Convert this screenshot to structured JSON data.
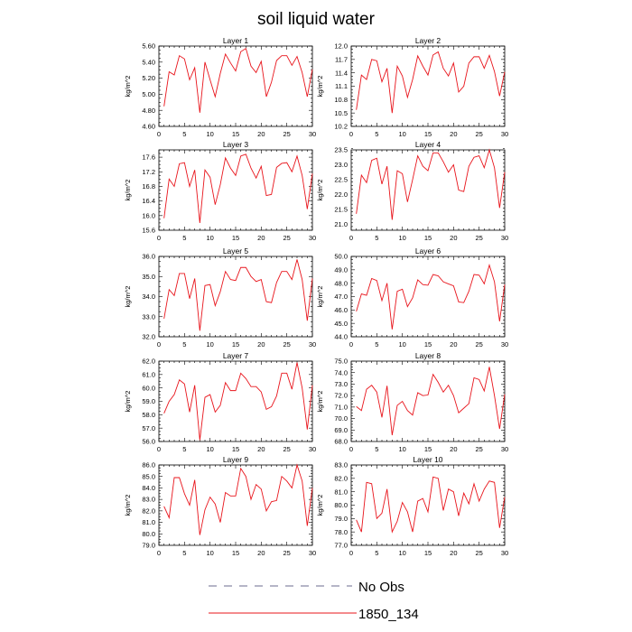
{
  "figure": {
    "title": "soil liquid water",
    "line_color": "#e8141b",
    "legend_dash_color": "#6b6b8f"
  },
  "legend": [
    {
      "label": "No Obs",
      "style": "dashed",
      "color": "#6b6b8f"
    },
    {
      "label": "1850_134",
      "style": "solid",
      "color": "#e8141b"
    }
  ],
  "chart_data": [
    {
      "type": "line",
      "title": "Layer 1",
      "ylabel": "kg/m^2",
      "xlim": [
        0,
        30
      ],
      "ylim": [
        4.6,
        5.6
      ],
      "xticks": [
        "0",
        "5",
        "10",
        "15",
        "20",
        "25",
        "30"
      ],
      "yticks": [
        "4.60",
        "4.80",
        "5.00",
        "5.20",
        "5.40",
        "5.60"
      ],
      "x": [
        1,
        2,
        3,
        4,
        5,
        6,
        7,
        8,
        9,
        10,
        11,
        12,
        13,
        14,
        15,
        16,
        17,
        18,
        19,
        20,
        21,
        22,
        23,
        24,
        25,
        26,
        27,
        28,
        29,
        30
      ],
      "series": [
        {
          "name": "1850_134",
          "values": [
            4.85,
            5.28,
            5.24,
            5.48,
            5.44,
            5.18,
            5.33,
            4.77,
            5.4,
            5.18,
            4.97,
            5.26,
            5.5,
            5.39,
            5.29,
            5.53,
            5.57,
            5.35,
            5.27,
            5.41,
            4.97,
            5.15,
            5.42,
            5.48,
            5.48,
            5.36,
            5.47,
            5.27,
            4.97,
            5.31
          ]
        }
      ]
    },
    {
      "type": "line",
      "title": "Layer 2",
      "ylabel": "kg/m^2",
      "xlim": [
        0,
        30
      ],
      "ylim": [
        10.2,
        12.0
      ],
      "xticks": [
        "0",
        "5",
        "10",
        "15",
        "20",
        "25",
        "30"
      ],
      "yticks": [
        "10.2",
        "10.5",
        "10.8",
        "11.1",
        "11.4",
        "11.7",
        "12.0"
      ],
      "x": [
        1,
        2,
        3,
        4,
        5,
        6,
        7,
        8,
        9,
        10,
        11,
        12,
        13,
        14,
        15,
        16,
        17,
        18,
        19,
        20,
        21,
        22,
        23,
        24,
        25,
        26,
        27,
        28,
        29,
        30
      ],
      "series": [
        {
          "name": "1850_134",
          "values": [
            10.57,
            11.35,
            11.25,
            11.7,
            11.67,
            11.2,
            11.5,
            10.5,
            11.55,
            11.33,
            10.85,
            11.25,
            11.78,
            11.55,
            11.35,
            11.8,
            11.87,
            11.5,
            11.33,
            11.62,
            10.97,
            11.1,
            11.62,
            11.76,
            11.76,
            11.5,
            11.79,
            11.43,
            10.88,
            11.42
          ]
        }
      ]
    },
    {
      "type": "line",
      "title": "Layer 3",
      "ylabel": "kg/m^2",
      "xlim": [
        0,
        30
      ],
      "ylim": [
        15.6,
        17.8
      ],
      "xticks": [
        "0",
        "5",
        "10",
        "15",
        "20",
        "25",
        "30"
      ],
      "yticks": [
        "15.6",
        "16.0",
        "16.4",
        "16.8",
        "17.2",
        "17.6"
      ],
      "x": [
        1,
        2,
        3,
        4,
        5,
        6,
        7,
        8,
        9,
        10,
        11,
        12,
        13,
        14,
        15,
        16,
        17,
        18,
        19,
        20,
        21,
        22,
        23,
        24,
        25,
        26,
        27,
        28,
        29,
        30
      ],
      "series": [
        {
          "name": "1850_134",
          "values": [
            15.93,
            17.0,
            16.8,
            17.42,
            17.45,
            16.8,
            17.25,
            15.8,
            17.25,
            17.05,
            16.3,
            16.85,
            17.58,
            17.3,
            17.1,
            17.63,
            17.68,
            17.3,
            17.03,
            17.35,
            16.55,
            16.58,
            17.32,
            17.43,
            17.45,
            17.2,
            17.63,
            17.1,
            16.18,
            17.15
          ]
        }
      ]
    },
    {
      "type": "line",
      "title": "Layer 4",
      "ylabel": "kg/m^2",
      "xlim": [
        0,
        30
      ],
      "ylim": [
        20.8,
        23.5
      ],
      "xticks": [
        "0",
        "5",
        "10",
        "15",
        "20",
        "25",
        "30"
      ],
      "yticks": [
        "21.0",
        "21.5",
        "22.0",
        "22.5",
        "23.0",
        "23.5"
      ],
      "x": [
        1,
        2,
        3,
        4,
        5,
        6,
        7,
        8,
        9,
        10,
        11,
        12,
        13,
        14,
        15,
        16,
        17,
        18,
        19,
        20,
        21,
        22,
        23,
        24,
        25,
        26,
        27,
        28,
        29,
        30
      ],
      "series": [
        {
          "name": "1850_134",
          "values": [
            21.35,
            22.65,
            22.4,
            23.15,
            23.22,
            22.35,
            22.95,
            21.15,
            22.8,
            22.7,
            21.75,
            22.5,
            23.3,
            22.95,
            22.8,
            23.4,
            23.4,
            23.1,
            22.75,
            23.0,
            22.15,
            22.1,
            22.95,
            23.25,
            23.3,
            22.9,
            23.5,
            22.9,
            21.55,
            22.75
          ]
        }
      ]
    },
    {
      "type": "line",
      "title": "Layer 5",
      "ylabel": "kg/m^2",
      "xlim": [
        0,
        30
      ],
      "ylim": [
        32.0,
        36.0
      ],
      "xticks": [
        "0",
        "5",
        "10",
        "15",
        "20",
        "25",
        "30"
      ],
      "yticks": [
        "32.0",
        "33.0",
        "34.0",
        "35.0",
        "36.0"
      ],
      "x": [
        1,
        2,
        3,
        4,
        5,
        6,
        7,
        8,
        9,
        10,
        11,
        12,
        13,
        14,
        15,
        16,
        17,
        18,
        19,
        20,
        21,
        22,
        23,
        24,
        25,
        26,
        27,
        28,
        29,
        30
      ],
      "series": [
        {
          "name": "1850_134",
          "values": [
            32.9,
            34.35,
            34.05,
            35.15,
            35.15,
            33.9,
            34.9,
            32.3,
            34.55,
            34.6,
            33.55,
            34.25,
            35.25,
            34.85,
            34.8,
            35.45,
            35.45,
            35.0,
            34.75,
            34.85,
            33.75,
            33.7,
            34.7,
            35.25,
            35.25,
            34.85,
            35.85,
            34.85,
            32.8,
            34.9
          ]
        }
      ]
    },
    {
      "type": "line",
      "title": "Layer 6",
      "ylabel": "kg/m^2",
      "xlim": [
        0,
        30
      ],
      "ylim": [
        44.0,
        50.0
      ],
      "xticks": [
        "0",
        "5",
        "10",
        "15",
        "20",
        "25",
        "30"
      ],
      "yticks": [
        "44.0",
        "45.0",
        "46.0",
        "47.0",
        "48.0",
        "49.0",
        "50.0"
      ],
      "x": [
        1,
        2,
        3,
        4,
        5,
        6,
        7,
        8,
        9,
        10,
        11,
        12,
        13,
        14,
        15,
        16,
        17,
        18,
        19,
        20,
        21,
        22,
        23,
        24,
        25,
        26,
        27,
        28,
        29,
        30
      ],
      "series": [
        {
          "name": "1850_134",
          "values": [
            45.9,
            47.2,
            47.1,
            48.35,
            48.2,
            46.7,
            48.0,
            44.55,
            47.4,
            47.55,
            46.25,
            46.9,
            48.25,
            47.9,
            47.85,
            48.65,
            48.55,
            48.1,
            47.95,
            47.8,
            46.6,
            46.55,
            47.4,
            48.65,
            48.6,
            47.95,
            49.35,
            48.1,
            45.15,
            47.9
          ]
        }
      ]
    },
    {
      "type": "line",
      "title": "Layer 7",
      "ylabel": "kg/m^2",
      "xlim": [
        0,
        30
      ],
      "ylim": [
        56.0,
        62.0
      ],
      "xticks": [
        "0",
        "5",
        "10",
        "15",
        "20",
        "25",
        "30"
      ],
      "yticks": [
        "56.0",
        "57.0",
        "58.0",
        "59.0",
        "60.0",
        "61.0",
        "62.0"
      ],
      "x": [
        1,
        2,
        3,
        4,
        5,
        6,
        7,
        8,
        9,
        10,
        11,
        12,
        13,
        14,
        15,
        16,
        17,
        18,
        19,
        20,
        21,
        22,
        23,
        24,
        25,
        26,
        27,
        28,
        29,
        30
      ],
      "series": [
        {
          "name": "1850_134",
          "values": [
            58.1,
            59.0,
            59.5,
            60.6,
            60.3,
            58.2,
            60.2,
            56.1,
            59.3,
            59.5,
            58.2,
            58.7,
            60.4,
            59.8,
            59.8,
            61.1,
            60.7,
            60.1,
            60.1,
            59.7,
            58.4,
            58.6,
            59.4,
            61.1,
            61.1,
            59.9,
            61.9,
            60.0,
            56.9,
            60.2
          ]
        }
      ]
    },
    {
      "type": "line",
      "title": "Layer 8",
      "ylabel": "kg/m^2",
      "xlim": [
        0,
        30
      ],
      "ylim": [
        68.0,
        75.0
      ],
      "xticks": [
        "0",
        "5",
        "10",
        "15",
        "20",
        "25",
        "30"
      ],
      "yticks": [
        "68.0",
        "69.0",
        "70.0",
        "71.0",
        "72.0",
        "73.0",
        "74.0",
        "75.0"
      ],
      "x": [
        1,
        2,
        3,
        4,
        5,
        6,
        7,
        8,
        9,
        10,
        11,
        12,
        13,
        14,
        15,
        16,
        17,
        18,
        19,
        20,
        21,
        22,
        23,
        24,
        25,
        26,
        27,
        28,
        29,
        30
      ],
      "series": [
        {
          "name": "1850_134",
          "values": [
            71.05,
            70.7,
            72.55,
            72.9,
            72.3,
            70.1,
            72.85,
            68.55,
            71.15,
            71.5,
            70.7,
            70.3,
            72.25,
            72.0,
            72.05,
            73.85,
            73.15,
            72.3,
            72.9,
            72.0,
            70.5,
            70.9,
            71.3,
            73.55,
            73.4,
            72.4,
            74.5,
            72.0,
            69.1,
            72.1
          ]
        }
      ]
    },
    {
      "type": "line",
      "title": "Layer 9",
      "ylabel": "kg/m^2",
      "xlim": [
        0,
        30
      ],
      "ylim": [
        79.0,
        86.0
      ],
      "xticks": [
        "0",
        "5",
        "10",
        "15",
        "20",
        "25",
        "30"
      ],
      "yticks": [
        "79.0",
        "80.0",
        "81.0",
        "82.0",
        "83.0",
        "84.0",
        "85.0",
        "86.0"
      ],
      "x": [
        1,
        2,
        3,
        4,
        5,
        6,
        7,
        8,
        9,
        10,
        11,
        12,
        13,
        14,
        15,
        16,
        17,
        18,
        19,
        20,
        21,
        22,
        23,
        24,
        25,
        26,
        27,
        28,
        29,
        30
      ],
      "series": [
        {
          "name": "1850_134",
          "values": [
            82.4,
            81.4,
            84.9,
            84.9,
            83.5,
            82.5,
            84.7,
            79.9,
            82.1,
            83.2,
            82.6,
            81.0,
            83.6,
            83.3,
            83.3,
            85.7,
            85.0,
            83.0,
            84.3,
            83.9,
            82.0,
            82.8,
            82.9,
            85.0,
            84.6,
            84.0,
            86.0,
            84.6,
            80.7,
            84.0
          ]
        }
      ]
    },
    {
      "type": "line",
      "title": "Layer 10",
      "ylabel": "kg/m^2",
      "xlim": [
        0,
        30
      ],
      "ylim": [
        77.0,
        83.0
      ],
      "xticks": [
        "0",
        "5",
        "10",
        "15",
        "20",
        "25",
        "30"
      ],
      "yticks": [
        "77.0",
        "78.0",
        "79.0",
        "80.0",
        "81.0",
        "82.0",
        "83.0"
      ],
      "x": [
        1,
        2,
        3,
        4,
        5,
        6,
        7,
        8,
        9,
        10,
        11,
        12,
        13,
        14,
        15,
        16,
        17,
        18,
        19,
        20,
        21,
        22,
        23,
        24,
        25,
        26,
        27,
        28,
        29,
        30
      ],
      "series": [
        {
          "name": "1850_134",
          "values": [
            78.9,
            78.0,
            81.7,
            81.6,
            79.0,
            79.4,
            81.2,
            78.0,
            78.8,
            80.2,
            79.5,
            78.0,
            80.3,
            80.5,
            79.5,
            82.1,
            82.0,
            79.6,
            81.2,
            81.0,
            79.2,
            80.9,
            80.1,
            81.6,
            80.3,
            81.2,
            81.8,
            81.7,
            78.3,
            80.6
          ]
        }
      ]
    }
  ]
}
